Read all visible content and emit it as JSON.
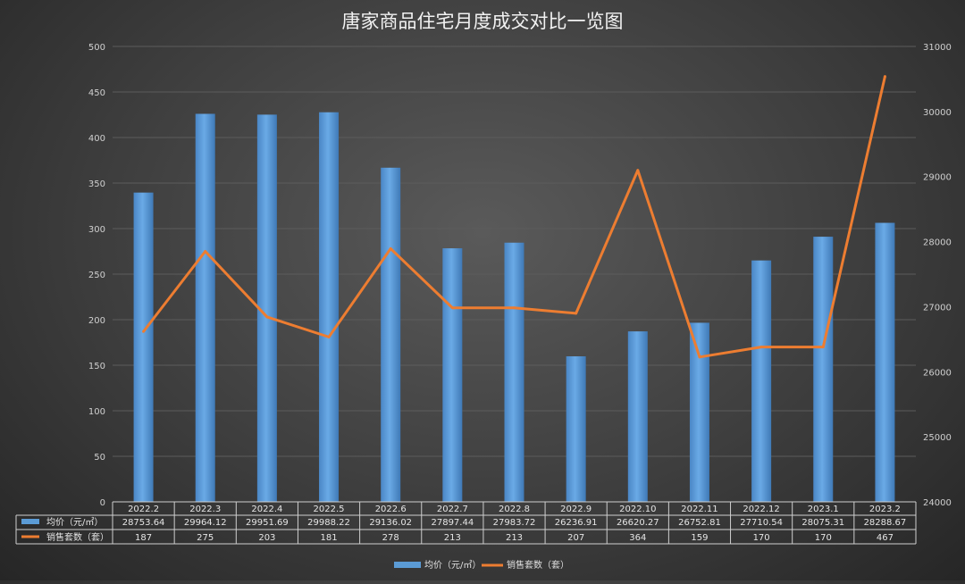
{
  "chart_data": {
    "type": "bar+line",
    "title": "唐家商品住宅月度成交对比一览图",
    "categories": [
      "2022.2",
      "2022.3",
      "2022.4",
      "2022.5",
      "2022.6",
      "2022.7",
      "2022.8",
      "2022.9",
      "2022.10",
      "2022.11",
      "2022.12",
      "2023.1",
      "2023.2"
    ],
    "series": [
      {
        "name": "均价（元/㎡）",
        "type": "bar",
        "axis": "left",
        "color": "#5b9bd5",
        "values": [
          28753.64,
          29964.12,
          29951.69,
          29988.22,
          29136.02,
          27897.44,
          27983.72,
          26236.91,
          26620.27,
          26752.81,
          27710.54,
          28075.31,
          28288.67
        ],
        "labels": [
          "28753.64",
          "29964.12",
          "29951.69",
          "29988.22",
          "29136.02",
          "27897.44",
          "27983.72",
          "26236.91",
          "26620.27",
          "26752.81",
          "27710.54",
          "28075.31",
          "28288.67"
        ]
      },
      {
        "name": "销售套数（套）",
        "type": "line",
        "axis": "right",
        "color": "#ed7d31",
        "values": [
          187,
          275,
          203,
          181,
          278,
          213,
          213,
          207,
          364,
          159,
          170,
          170,
          467
        ],
        "labels": [
          "187",
          "275",
          "203",
          "181",
          "278",
          "213",
          "213",
          "207",
          "364",
          "159",
          "170",
          "170",
          "467"
        ]
      }
    ],
    "y_left": {
      "ticks": [
        "0",
        "50",
        "100",
        "150",
        "200",
        "250",
        "300",
        "350",
        "400",
        "450",
        "500"
      ]
    },
    "y_right": {
      "ticks": [
        "24000",
        "25000",
        "26000",
        "27000",
        "28000",
        "29000",
        "30000",
        "31000"
      ]
    },
    "grid": true,
    "legend_position": "bottom",
    "data_table": true
  }
}
